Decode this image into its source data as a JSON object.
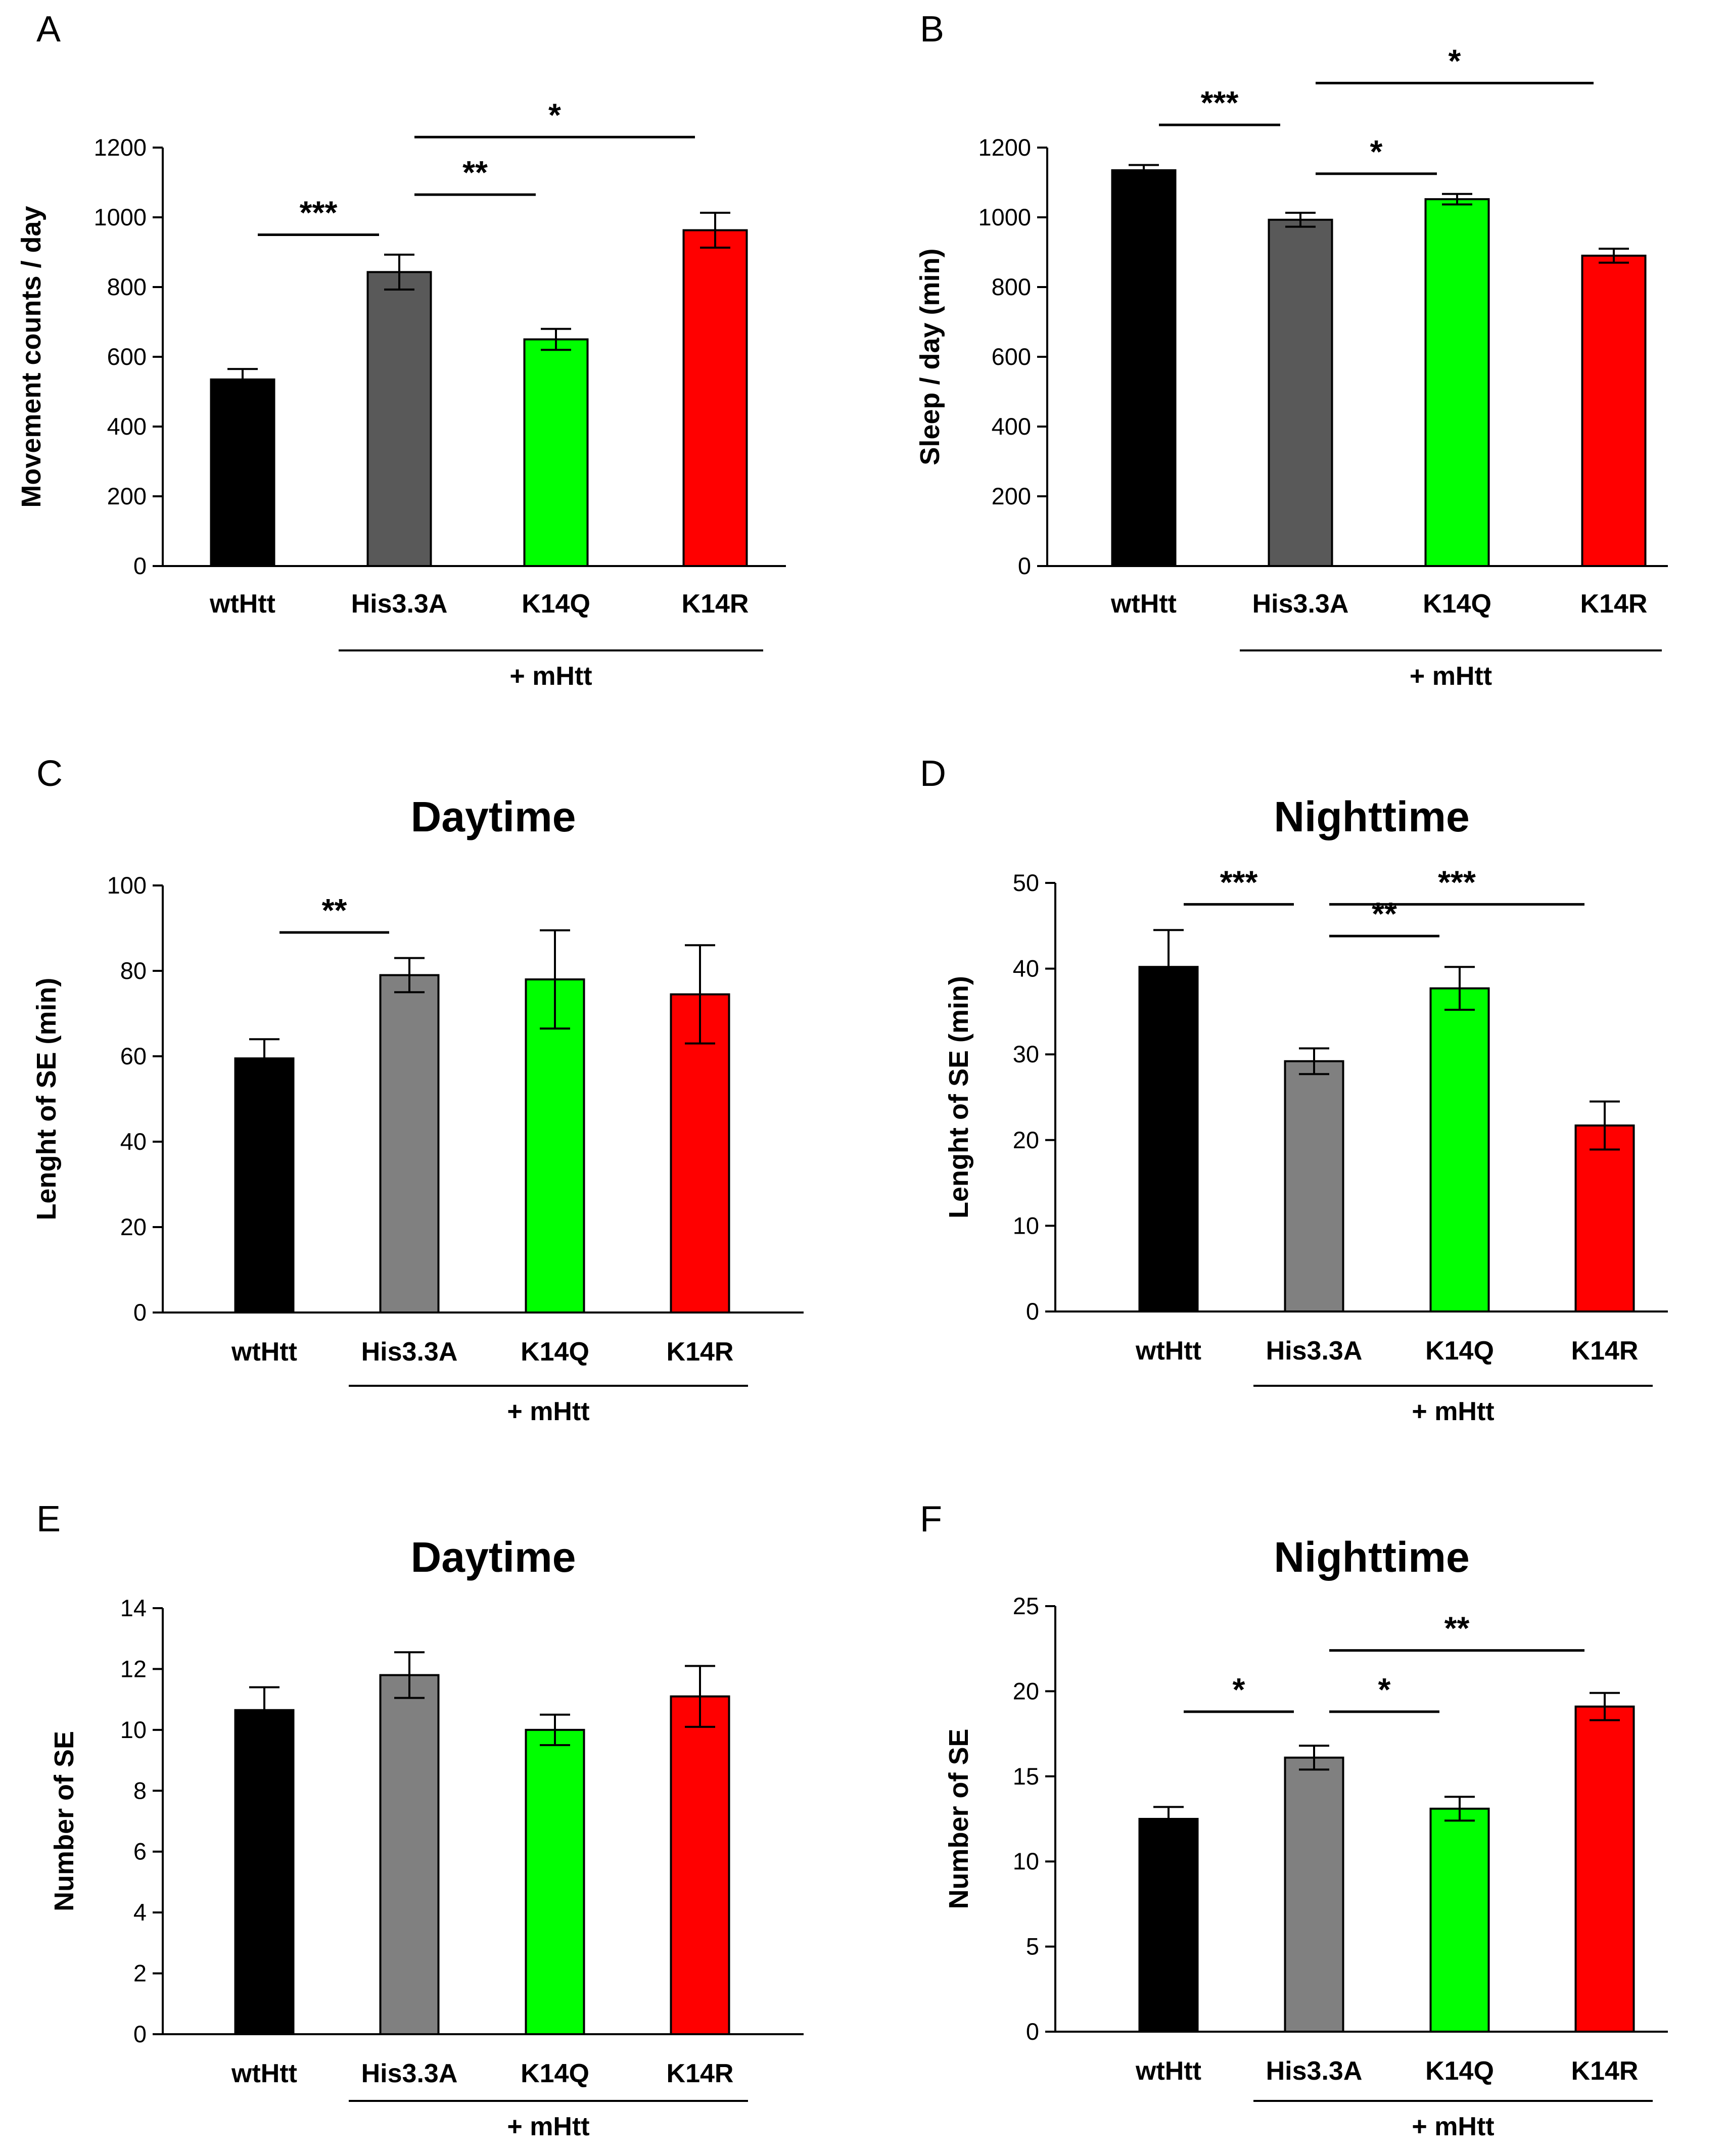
{
  "chart_data": [
    {
      "panel": "A",
      "type": "bar",
      "title": "",
      "ylabel": "Movement counts / day",
      "ylim": [
        0,
        1200
      ],
      "yticks": [
        "0",
        "200",
        "400",
        "600",
        "800",
        "1000",
        "1200"
      ],
      "categories": [
        "wtHtt",
        "His3.3A",
        "K14Q",
        "K14R"
      ],
      "values": [
        535,
        843,
        650,
        963
      ],
      "errors": [
        30,
        50,
        30,
        50
      ],
      "colors": [
        "#000000",
        "#595959",
        "#00ff00",
        "#ff0000"
      ],
      "group_label": "+ mHtt",
      "significance": [
        {
          "from": 0,
          "to": 1,
          "label": "***",
          "y": 950
        },
        {
          "from": 1,
          "to": 2,
          "label": "**",
          "y": 1065
        },
        {
          "from": 1,
          "to": 3,
          "label": "*",
          "y": 1230
        }
      ]
    },
    {
      "panel": "B",
      "type": "bar",
      "title": "",
      "ylabel": "Sleep / day (min)",
      "ylim": [
        0,
        1200
      ],
      "yticks": [
        "0",
        "200",
        "400",
        "600",
        "800",
        "1000",
        "1200"
      ],
      "categories": [
        "wtHtt",
        "His3.3A",
        "K14Q",
        "K14R"
      ],
      "values": [
        1135,
        993,
        1052,
        890
      ],
      "errors": [
        15,
        20,
        15,
        20
      ],
      "colors": [
        "#000000",
        "#595959",
        "#00ff00",
        "#ff0000"
      ],
      "group_label": "+ mHtt",
      "significance": [
        {
          "from": 0,
          "to": 1,
          "label": "***",
          "y": 1265
        },
        {
          "from": 1,
          "to": 2,
          "label": "*",
          "y": 1125
        },
        {
          "from": 1,
          "to": 3,
          "label": "*",
          "y": 1385
        }
      ]
    },
    {
      "panel": "C",
      "type": "bar",
      "title": "Daytime",
      "ylabel": "Lenght of SE (min)",
      "ylim": [
        0,
        100
      ],
      "yticks": [
        "0",
        "20",
        "40",
        "60",
        "80",
        "100"
      ],
      "categories": [
        "wtHtt",
        "His3.3A",
        "K14Q",
        "K14R"
      ],
      "values": [
        59.5,
        79,
        78,
        74.5
      ],
      "errors": [
        4.5,
        4,
        11.5,
        11.5
      ],
      "colors": [
        "#000000",
        "#808080",
        "#00ff00",
        "#ff0000"
      ],
      "group_label": "+ mHtt",
      "significance": [
        {
          "from": 0,
          "to": 1,
          "label": "**",
          "y": 89
        }
      ]
    },
    {
      "panel": "D",
      "type": "bar",
      "title": "Nighttime",
      "ylabel": "Lenght of SE (min)",
      "ylim": [
        0,
        50
      ],
      "yticks": [
        "0",
        "10",
        "20",
        "30",
        "40",
        "50"
      ],
      "categories": [
        "wtHtt",
        "His3.3A",
        "K14Q",
        "K14R"
      ],
      "values": [
        40.2,
        29.2,
        37.7,
        21.7
      ],
      "errors": [
        4.3,
        1.5,
        2.5,
        2.8
      ],
      "colors": [
        "#000000",
        "#808080",
        "#00ff00",
        "#ff0000"
      ],
      "group_label": "+ mHtt",
      "significance": [
        {
          "from": 0,
          "to": 1,
          "label": "***",
          "y": 47.5
        },
        {
          "from": 1,
          "to": 2,
          "label": "**",
          "y": 43.8
        },
        {
          "from": 1,
          "to": 3,
          "label": "***",
          "y": 47.5
        }
      ]
    },
    {
      "panel": "E",
      "type": "bar",
      "title": "Daytime",
      "ylabel": "Number of SE",
      "ylim": [
        0,
        14
      ],
      "yticks": [
        "0",
        "2",
        "4",
        "6",
        "8",
        "10",
        "12",
        "14"
      ],
      "categories": [
        "wtHtt",
        "His3.3A",
        "K14Q",
        "K14R"
      ],
      "values": [
        10.65,
        11.8,
        10,
        11.1
      ],
      "errors": [
        0.75,
        0.75,
        0.5,
        1.0
      ],
      "colors": [
        "#000000",
        "#808080",
        "#00ff00",
        "#ff0000"
      ],
      "group_label": "+ mHtt",
      "significance": []
    },
    {
      "panel": "F",
      "type": "bar",
      "title": "Nighttime",
      "ylabel": "Number of SE",
      "ylim": [
        0,
        25
      ],
      "yticks": [
        "0",
        "5",
        "10",
        "15",
        "20",
        "25"
      ],
      "categories": [
        "wtHtt",
        "His3.3A",
        "K14Q",
        "K14R"
      ],
      "values": [
        12.5,
        16.1,
        13.1,
        19.1
      ],
      "errors": [
        0.7,
        0.7,
        0.7,
        0.8
      ],
      "colors": [
        "#000000",
        "#808080",
        "#00ff00",
        "#ff0000"
      ],
      "group_label": "+ mHtt",
      "significance": [
        {
          "from": 0,
          "to": 1,
          "label": "*",
          "y": 18.8
        },
        {
          "from": 1,
          "to": 2,
          "label": "*",
          "y": 18.8
        },
        {
          "from": 1,
          "to": 3,
          "label": "**",
          "y": 22.4
        }
      ]
    }
  ]
}
